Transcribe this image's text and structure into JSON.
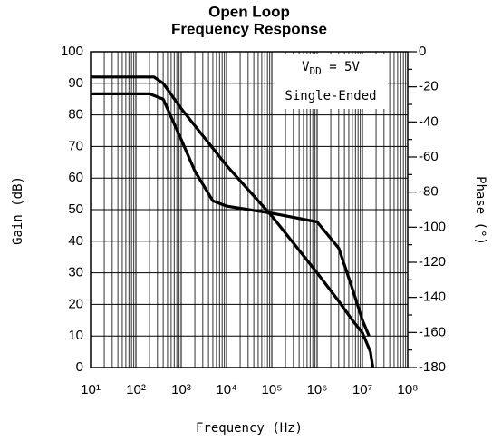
{
  "chart_data": {
    "type": "line",
    "title": [
      "Open Loop",
      "Frequency Response"
    ],
    "x_label": "Frequency (Hz)",
    "y_label": "Gain (dB)",
    "y2_label": "Phase (°)",
    "log_x": true,
    "grid": true,
    "xlim": [
      10,
      100000000
    ],
    "xticks": [
      {
        "value": 10,
        "label": "10¹"
      },
      {
        "value": 100,
        "label": "10²"
      },
      {
        "value": 1000,
        "label": "10³"
      },
      {
        "value": 10000,
        "label": "10⁴"
      },
      {
        "value": 100000,
        "label": "10⁵"
      },
      {
        "value": 1000000,
        "label": "10⁶"
      },
      {
        "value": 10000000,
        "label": "10⁷"
      },
      {
        "value": 100000000,
        "label": "10⁸"
      }
    ],
    "ylim": [
      0,
      100
    ],
    "yticks": [
      0,
      10,
      20,
      30,
      40,
      50,
      60,
      70,
      80,
      90,
      100
    ],
    "y2lim": [
      -180,
      0
    ],
    "y2ticks": [
      0,
      -20,
      -40,
      -60,
      -80,
      -100,
      -120,
      -140,
      -160,
      -180
    ],
    "annotation": {
      "main": "V",
      "sub": "DD",
      "rest": " = 5V",
      "line2": "Single-Ended"
    },
    "series": [
      {
        "name": "Gain",
        "color": "#000000",
        "x": [
          10,
          250,
          400,
          1000,
          10000,
          100000,
          1000000,
          3000000,
          6000000,
          10000000,
          15000000,
          17000000
        ],
        "values": [
          92,
          92,
          90,
          82,
          64,
          48,
          30,
          21,
          15,
          11,
          5,
          0
        ]
      },
      {
        "name": "Phase",
        "color": "#000000",
        "axis": "y2",
        "x": [
          10,
          200,
          400,
          1000,
          2000,
          5000,
          10000,
          100000,
          1000000,
          3000000,
          6000000,
          10000000,
          14000000
        ],
        "values": [
          -24,
          -24,
          -27,
          -50,
          -68,
          -85,
          -88,
          -92,
          -97,
          -112,
          -135,
          -153,
          -162
        ]
      }
    ]
  }
}
